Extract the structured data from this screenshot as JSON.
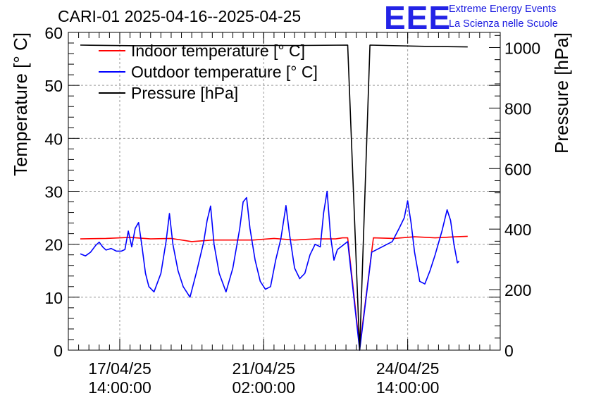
{
  "title": "CARI-01 2025-04-16--2025-04-25",
  "logo": {
    "mark": "EEE",
    "line1": "Extreme Energy Events",
    "line2": "La Scienza nelle Scuole",
    "color": "#2323e6"
  },
  "chart_data": {
    "type": "line",
    "ylabel": "Temperature [° C]",
    "ylabel_right": "Pressure [hPa]",
    "ylim": [
      0,
      60
    ],
    "ylim_right": [
      0,
      1050
    ],
    "y_ticks": [
      0,
      10,
      20,
      30,
      40,
      50,
      60
    ],
    "y_ticks_right": [
      0,
      200,
      400,
      600,
      800,
      1000
    ],
    "xlim": [
      "2025-04-16 08:00",
      "2025-04-26 20:00"
    ],
    "x_ticks": [
      {
        "x": "2025-04-17 14:00",
        "label1": "17/04/25",
        "label2": "14:00:00"
      },
      {
        "x": "2025-04-21 02:00",
        "label1": "21/04/25",
        "label2": "02:00:00"
      },
      {
        "x": "2025-04-24 14:00",
        "label1": "24/04/25",
        "label2": "14:00:00"
      }
    ],
    "grid": true,
    "legend_position": "top-left",
    "series": [
      {
        "name": "Indoor temperature [° C]",
        "color": "#ff0000",
        "axis": "left",
        "points": [
          [
            "2025-04-16 15:00",
            21.0
          ],
          [
            "2025-04-17 06:00",
            21.1
          ],
          [
            "2025-04-17 20:00",
            21.3
          ],
          [
            "2025-04-18 08:00",
            21.0
          ],
          [
            "2025-04-18 20:00",
            21.1
          ],
          [
            "2025-04-19 08:00",
            20.5
          ],
          [
            "2025-04-19 20:00",
            20.8
          ],
          [
            "2025-04-20 08:00",
            20.8
          ],
          [
            "2025-04-20 20:00",
            20.8
          ],
          [
            "2025-04-21 08:00",
            21.1
          ],
          [
            "2025-04-21 20:00",
            20.8
          ],
          [
            "2025-04-22 08:00",
            21.0
          ],
          [
            "2025-04-22 20:00",
            21.0
          ],
          [
            "2025-04-23 00:00",
            21.2
          ],
          [
            "2025-04-23 03:00",
            21.2
          ],
          [
            "2025-04-23 10:00",
            0.5
          ],
          [
            "2025-04-23 18:00",
            21.2
          ],
          [
            "2025-04-24 06:00",
            21.1
          ],
          [
            "2025-04-24 18:00",
            21.4
          ],
          [
            "2025-04-25 06:00",
            21.2
          ],
          [
            "2025-04-25 18:00",
            21.4
          ],
          [
            "2025-04-26 01:00",
            21.5
          ]
        ]
      },
      {
        "name": "Outdoor temperature [° C]",
        "color": "#0000ff",
        "axis": "left",
        "points": [
          [
            "2025-04-16 15:00",
            18.2
          ],
          [
            "2025-04-16 18:00",
            17.8
          ],
          [
            "2025-04-16 21:00",
            18.5
          ],
          [
            "2025-04-17 00:00",
            19.8
          ],
          [
            "2025-04-17 02:00",
            20.4
          ],
          [
            "2025-04-17 04:00",
            19.5
          ],
          [
            "2025-04-17 06:00",
            18.9
          ],
          [
            "2025-04-17 09:00",
            19.2
          ],
          [
            "2025-04-17 12:00",
            18.7
          ],
          [
            "2025-04-17 15:00",
            18.7
          ],
          [
            "2025-04-17 17:00",
            19.0
          ],
          [
            "2025-04-17 19:00",
            22.5
          ],
          [
            "2025-04-17 21:00",
            19.5
          ],
          [
            "2025-04-17 23:00",
            23.0
          ],
          [
            "2025-04-18 01:00",
            24.1
          ],
          [
            "2025-04-18 03:00",
            19.5
          ],
          [
            "2025-04-18 05:00",
            14.5
          ],
          [
            "2025-04-18 07:00",
            12.0
          ],
          [
            "2025-04-18 10:00",
            11.0
          ],
          [
            "2025-04-18 14:00",
            14.5
          ],
          [
            "2025-04-18 17:00",
            20.5
          ],
          [
            "2025-04-18 19:00",
            25.8
          ],
          [
            "2025-04-18 21:00",
            20.0
          ],
          [
            "2025-04-19 00:00",
            15.0
          ],
          [
            "2025-04-19 03:00",
            12.0
          ],
          [
            "2025-04-19 07:00",
            10.0
          ],
          [
            "2025-04-19 11:00",
            15.0
          ],
          [
            "2025-04-19 15:00",
            20.5
          ],
          [
            "2025-04-19 17:00",
            24.5
          ],
          [
            "2025-04-19 19:00",
            27.2
          ],
          [
            "2025-04-19 21:00",
            20.0
          ],
          [
            "2025-04-20 00:00",
            14.5
          ],
          [
            "2025-04-20 04:00",
            11.0
          ],
          [
            "2025-04-20 08:00",
            15.5
          ],
          [
            "2025-04-20 12:00",
            23.0
          ],
          [
            "2025-04-20 14:00",
            28.0
          ],
          [
            "2025-04-20 16:00",
            28.8
          ],
          [
            "2025-04-20 18:00",
            23.0
          ],
          [
            "2025-04-20 21:00",
            17.0
          ],
          [
            "2025-04-21 00:00",
            13.0
          ],
          [
            "2025-04-21 03:00",
            11.5
          ],
          [
            "2025-04-21 06:00",
            12.0
          ],
          [
            "2025-04-21 09:00",
            17.0
          ],
          [
            "2025-04-21 12:00",
            21.0
          ],
          [
            "2025-04-21 15:00",
            27.3
          ],
          [
            "2025-04-21 17:00",
            22.0
          ],
          [
            "2025-04-21 20:00",
            15.5
          ],
          [
            "2025-04-21 23:00",
            13.5
          ],
          [
            "2025-04-22 02:00",
            14.5
          ],
          [
            "2025-04-22 05:00",
            18.0
          ],
          [
            "2025-04-22 08:00",
            20.0
          ],
          [
            "2025-04-22 11:00",
            19.5
          ],
          [
            "2025-04-22 13:00",
            26.0
          ],
          [
            "2025-04-22 15:00",
            30.0
          ],
          [
            "2025-04-22 17:00",
            21.5
          ],
          [
            "2025-04-22 19:00",
            17.0
          ],
          [
            "2025-04-22 21:00",
            19.0
          ],
          [
            "2025-04-23 03:00",
            20.5
          ],
          [
            "2025-04-23 10:00",
            0.0
          ],
          [
            "2025-04-23 17:00",
            18.5
          ],
          [
            "2025-04-23 23:00",
            19.5
          ],
          [
            "2025-04-24 05:00",
            20.5
          ],
          [
            "2025-04-24 09:00",
            23.0
          ],
          [
            "2025-04-24 12:00",
            25.0
          ],
          [
            "2025-04-24 14:00",
            28.2
          ],
          [
            "2025-04-24 16:00",
            24.0
          ],
          [
            "2025-04-24 18:00",
            18.5
          ],
          [
            "2025-04-24 21:00",
            13.0
          ],
          [
            "2025-04-25 00:00",
            12.5
          ],
          [
            "2025-04-25 03:00",
            15.0
          ],
          [
            "2025-04-25 06:00",
            18.0
          ],
          [
            "2025-04-25 10:00",
            22.5
          ],
          [
            "2025-04-25 13:00",
            26.5
          ],
          [
            "2025-04-25 15:00",
            24.5
          ],
          [
            "2025-04-25 17:00",
            20.0
          ],
          [
            "2025-04-25 19:00",
            16.5
          ],
          [
            "2025-04-25 20:00",
            16.8
          ]
        ]
      },
      {
        "name": "Pressure [hPa]",
        "color": "#000000",
        "axis": "right",
        "points": [
          [
            "2025-04-16 15:00",
            1008
          ],
          [
            "2025-04-18 00:00",
            1006
          ],
          [
            "2025-04-20 00:00",
            1007
          ],
          [
            "2025-04-22 00:00",
            1007
          ],
          [
            "2025-04-23 03:00",
            1008
          ],
          [
            "2025-04-23 10:00",
            0
          ],
          [
            "2025-04-23 16:00",
            1008
          ],
          [
            "2025-04-25 00:00",
            1004
          ],
          [
            "2025-04-26 01:00",
            1002
          ]
        ]
      }
    ]
  }
}
